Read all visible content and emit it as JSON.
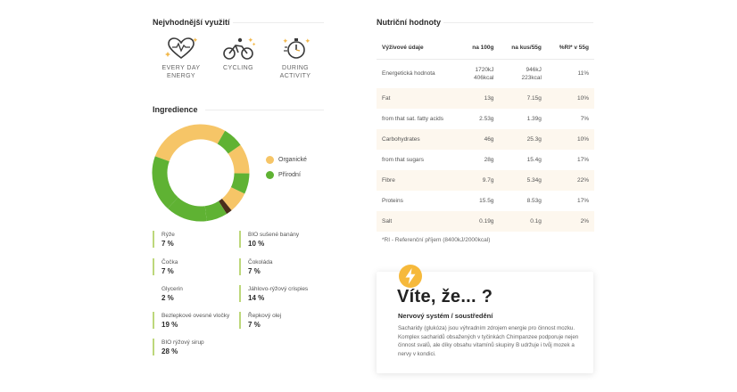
{
  "best_use": {
    "title": "Nejvhodnější využití",
    "items": [
      {
        "icon": "heart-pulse-icon",
        "label_line1": "EVERY DAY",
        "label_line2": "ENERGY"
      },
      {
        "icon": "cyclist-icon",
        "label_line1": "CYCLING",
        "label_line2": ""
      },
      {
        "icon": "stopwatch-icon",
        "label_line1": "DURING ACTIVITY",
        "label_line2": ""
      }
    ]
  },
  "ingredients": {
    "title": "Ingredience",
    "legend": [
      {
        "label": "Organické",
        "color": "#f6c567"
      },
      {
        "label": "Přírodní",
        "color": "#5fb233"
      }
    ],
    "items": [
      {
        "name": "Rýže",
        "value": "7 %"
      },
      {
        "name": "BIO sušené banány",
        "value": "10 %"
      },
      {
        "name": "Čočka",
        "value": "7 %"
      },
      {
        "name": "Čokoláda",
        "value": "7 %"
      },
      {
        "name": "Glycerin",
        "value": "2 %"
      },
      {
        "name": "Jáhlovo-rýžový crispies",
        "value": "14 %"
      },
      {
        "name": "Bezlepkové ovesné vločky",
        "value": "19 %"
      },
      {
        "name": "Řepkový olej",
        "value": "7 %"
      },
      {
        "name": "BIO rýžový sirup",
        "value": "28 %"
      }
    ]
  },
  "chart_data": {
    "type": "pie",
    "variant": "donut",
    "slices": [
      {
        "value": 28,
        "color": "#f6c567"
      },
      {
        "value": 7,
        "color": "#5fb233"
      },
      {
        "value": 10,
        "color": "#f6c567"
      },
      {
        "value": 7,
        "color": "#5fb233"
      },
      {
        "value": 7,
        "color": "#f6c567"
      },
      {
        "value": 2,
        "color": "#4a2e1b"
      },
      {
        "value": 7,
        "color": "#5fb233"
      },
      {
        "value": 14,
        "color": "#5fb233"
      },
      {
        "value": 19,
        "color": "#5fb233"
      }
    ]
  },
  "nutrition": {
    "title": "Nutriční hodnoty",
    "headers": [
      "Výživové údaje",
      "na 100g",
      "na kus/55g",
      "%RI* v 55g"
    ],
    "rows": [
      {
        "name": "Energetická hodnota",
        "per100_line1": "1720kJ",
        "per100_line2": "406kcal",
        "perPiece_line1": "946kJ",
        "perPiece_line2": "223kcal",
        "ri": "11%"
      },
      {
        "name": "Fat",
        "per100": "13g",
        "perPiece": "7.15g",
        "ri": "10%"
      },
      {
        "name": "from that sat. fatty acids",
        "per100": "2.53g",
        "perPiece": "1.39g",
        "ri": "7%"
      },
      {
        "name": "Carbohydrates",
        "per100": "46g",
        "perPiece": "25.3g",
        "ri": "10%"
      },
      {
        "name": "from that sugars",
        "per100": "28g",
        "perPiece": "15.4g",
        "ri": "17%"
      },
      {
        "name": "Fibre",
        "per100": "9.7g",
        "perPiece": "5.34g",
        "ri": "22%"
      },
      {
        "name": "Proteins",
        "per100": "15.5g",
        "perPiece": "8.53g",
        "ri": "17%"
      },
      {
        "name": "Salt",
        "per100": "0.19g",
        "perPiece": "0.1g",
        "ri": "2%"
      }
    ],
    "footnote": "*RI - Referenční příjem (8400kJ/2000kcal)"
  },
  "did_you_know": {
    "icon": "lightning-icon",
    "title": "Víte, že... ?",
    "subtitle": "Nervový systém / soustředění",
    "text": "Sacharidy (glukóza) jsou výhradním zdrojem energie pro činnost mozku. Komplex sacharidů obsažených v tyčinkách Chimpanzee podporuje nejen činnost svalů, ale díky obsahu vitamínů skupiny B udržuje i tvůj mozek a nervy v kondici."
  }
}
